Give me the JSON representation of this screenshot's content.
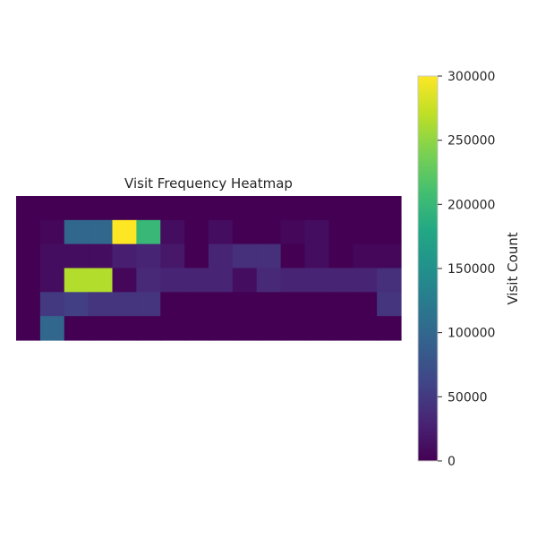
{
  "chart_data": {
    "type": "heatmap",
    "title": "Visit Frequency Heatmap",
    "colormap": "viridis",
    "vmin": 0,
    "vmax": 300000,
    "colorbar": {
      "label": "Visit Count",
      "ticks": [
        0,
        50000,
        100000,
        150000,
        200000,
        250000,
        300000
      ],
      "tick_labels": [
        "0",
        "50000",
        "100000",
        "150000",
        "200000",
        "250000",
        "300000"
      ]
    },
    "grid": false,
    "rows": 6,
    "cols": 16,
    "values": [
      [
        0,
        0,
        0,
        0,
        0,
        0,
        0,
        0,
        0,
        0,
        0,
        0,
        0,
        0,
        0,
        0
      ],
      [
        0,
        5000,
        100000,
        100000,
        300000,
        200000,
        10000,
        0,
        10000,
        0,
        0,
        5000,
        10000,
        0,
        0,
        0
      ],
      [
        0,
        10000,
        10000,
        10000,
        25000,
        30000,
        20000,
        0,
        30000,
        40000,
        40000,
        0,
        10000,
        0,
        5000,
        5000
      ],
      [
        0,
        10000,
        265000,
        265000,
        5000,
        35000,
        30000,
        30000,
        30000,
        10000,
        35000,
        30000,
        30000,
        30000,
        30000,
        40000
      ],
      [
        0,
        50000,
        55000,
        45000,
        45000,
        45000,
        0,
        0,
        0,
        0,
        0,
        0,
        0,
        0,
        0,
        45000
      ],
      [
        0,
        100000,
        0,
        0,
        0,
        0,
        0,
        0,
        0,
        0,
        0,
        0,
        0,
        0,
        0,
        0
      ]
    ]
  }
}
